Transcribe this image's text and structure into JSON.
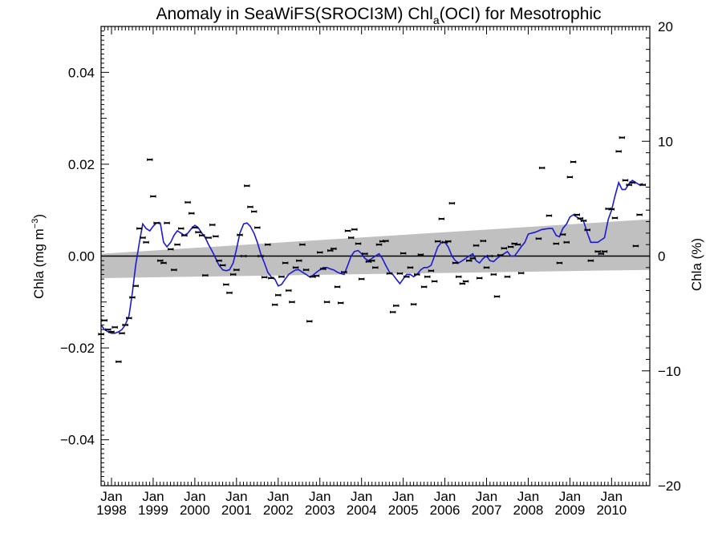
{
  "chart_data": {
    "type": "scatter",
    "title_main": "Anomaly in SeaWiFS(SROCI3M) Chl",
    "title_sub": "a",
    "title_tail": "(OCI) for Mesotrophic",
    "ylabel_left_main": "Chla (mg m",
    "ylabel_left_sup": "−3",
    "ylabel_left_close": ")",
    "ylabel_right": "Chla (%)",
    "x_range": [
      1997.75,
      2010.917
    ],
    "ylim_left": [
      -0.05,
      0.05
    ],
    "ylim_right": [
      -20,
      20
    ],
    "left_ticks": [
      {
        "value": -0.04,
        "label": "−0.04"
      },
      {
        "value": -0.02,
        "label": "−0.02"
      },
      {
        "value": 0.0,
        "label": "0.00"
      },
      {
        "value": 0.02,
        "label": "0.02"
      },
      {
        "value": 0.04,
        "label": "0.04"
      }
    ],
    "right_ticks": [
      {
        "value": -20,
        "label": "−20"
      },
      {
        "value": -10,
        "label": "−10"
      },
      {
        "value": 0,
        "label": "0"
      },
      {
        "value": 10,
        "label": "10"
      },
      {
        "value": 20,
        "label": "20"
      }
    ],
    "x_ticks": [
      {
        "value": 1998,
        "month": "Jan",
        "year": "1998"
      },
      {
        "value": 1999,
        "month": "Jan",
        "year": "1999"
      },
      {
        "value": 2000,
        "month": "Jan",
        "year": "2000"
      },
      {
        "value": 2001,
        "month": "Jan",
        "year": "2001"
      },
      {
        "value": 2002,
        "month": "Jan",
        "year": "2002"
      },
      {
        "value": 2003,
        "month": "Jan",
        "year": "2003"
      },
      {
        "value": 2004,
        "month": "Jan",
        "year": "2004"
      },
      {
        "value": 2005,
        "month": "Jan",
        "year": "2005"
      },
      {
        "value": 2006,
        "month": "Jan",
        "year": "2006"
      },
      {
        "value": 2007,
        "month": "Jan",
        "year": "2007"
      },
      {
        "value": 2008,
        "month": "Jan",
        "year": "2008"
      },
      {
        "value": 2009,
        "month": "Jan",
        "year": "2009"
      },
      {
        "value": 2010,
        "month": "Jan",
        "year": "2010"
      }
    ],
    "trend_band": {
      "x": [
        1997.75,
        2010.917
      ],
      "upper": [
        0.0005,
        0.008
      ],
      "lower": [
        -0.0048,
        -0.003
      ]
    },
    "points": [
      [
        1997.75,
        -0.017
      ],
      [
        1997.83,
        -0.014
      ],
      [
        1997.92,
        -0.016
      ],
      [
        1998.0,
        -0.0165
      ],
      [
        1998.08,
        -0.0155
      ],
      [
        1998.17,
        -0.023
      ],
      [
        1998.25,
        -0.0168
      ],
      [
        1998.33,
        -0.015
      ],
      [
        1998.42,
        -0.0135
      ],
      [
        1998.5,
        -0.009
      ],
      [
        1998.58,
        -0.0065
      ],
      [
        1998.67,
        0.006
      ],
      [
        1998.75,
        0.004
      ],
      [
        1998.83,
        0.003
      ],
      [
        1998.92,
        0.021
      ],
      [
        1999.0,
        0.013
      ],
      [
        1999.08,
        0.0072
      ],
      [
        1999.17,
        -0.001
      ],
      [
        1999.25,
        -0.0015
      ],
      [
        1999.33,
        0.0072
      ],
      [
        1999.42,
        0.0015
      ],
      [
        1999.5,
        -0.003
      ],
      [
        1999.58,
        0.0025
      ],
      [
        1999.67,
        0.006
      ],
      [
        1999.75,
        0.0045
      ],
      [
        1999.83,
        0.0117
      ],
      [
        1999.92,
        0.0093
      ],
      [
        2000.0,
        0.0062
      ],
      [
        2000.08,
        0.0052
      ],
      [
        2000.17,
        0.0045
      ],
      [
        2000.25,
        -0.0042
      ],
      [
        2000.33,
        0.004
      ],
      [
        2000.42,
        0.0068
      ],
      [
        2000.5,
        0.0043
      ],
      [
        2000.58,
        -0.001
      ],
      [
        2000.67,
        -0.002
      ],
      [
        2000.75,
        -0.0062
      ],
      [
        2000.83,
        -0.008
      ],
      [
        2000.92,
        -0.004
      ],
      [
        2001.0,
        -0.003
      ],
      [
        2001.08,
        0.0046
      ],
      [
        2001.17,
        0.0
      ],
      [
        2001.25,
        0.0153
      ],
      [
        2001.33,
        0.0107
      ],
      [
        2001.42,
        0.0097
      ],
      [
        2001.5,
        0.0062
      ],
      [
        2001.58,
        0.0
      ],
      [
        2001.67,
        -0.0046
      ],
      [
        2001.75,
        0.0025
      ],
      [
        2001.83,
        -0.0048
      ],
      [
        2001.92,
        -0.0106
      ],
      [
        2002.0,
        -0.0085
      ],
      [
        2002.08,
        -0.0045
      ],
      [
        2002.17,
        -0.0015
      ],
      [
        2002.25,
        -0.0075
      ],
      [
        2002.33,
        -0.01
      ],
      [
        2002.42,
        -0.0025
      ],
      [
        2002.5,
        -0.001
      ],
      [
        2002.58,
        0.0025
      ],
      [
        2002.67,
        -0.003
      ],
      [
        2002.75,
        -0.0142
      ],
      [
        2002.83,
        -0.0045
      ],
      [
        2002.92,
        -0.0043
      ],
      [
        2003.0,
        0.0008
      ],
      [
        2003.08,
        -0.0028
      ],
      [
        2003.17,
        -0.01
      ],
      [
        2003.25,
        0.0012
      ],
      [
        2003.33,
        0.0016
      ],
      [
        2003.42,
        -0.0067
      ],
      [
        2003.5,
        -0.0102
      ],
      [
        2003.58,
        -0.0035
      ],
      [
        2003.67,
        0.0055
      ],
      [
        2003.75,
        0.004
      ],
      [
        2003.83,
        0.0058
      ],
      [
        2003.92,
        0.0027
      ],
      [
        2004.0,
        -0.005
      ],
      [
        2004.08,
        0.0005
      ],
      [
        2004.17,
        -0.0012
      ],
      [
        2004.25,
        -0.001
      ],
      [
        2004.33,
        -0.0025
      ],
      [
        2004.42,
        0.0025
      ],
      [
        2004.5,
        0.0032
      ],
      [
        2004.58,
        0.0033
      ],
      [
        2004.67,
        -0.0038
      ],
      [
        2004.75,
        -0.0122
      ],
      [
        2004.83,
        -0.0108
      ],
      [
        2004.92,
        -0.0038
      ],
      [
        2005.0,
        0.0006
      ],
      [
        2005.08,
        -0.0045
      ],
      [
        2005.17,
        -0.0025
      ],
      [
        2005.25,
        -0.0105
      ],
      [
        2005.33,
        -0.004
      ],
      [
        2005.42,
        0.0003
      ],
      [
        2005.5,
        -0.0067
      ],
      [
        2005.58,
        -0.0045
      ],
      [
        2005.67,
        -0.0032
      ],
      [
        2005.75,
        -0.0055
      ],
      [
        2005.83,
        0.0032
      ],
      [
        2005.92,
        0.0081
      ],
      [
        2006.0,
        0.003
      ],
      [
        2006.08,
        0.0032
      ],
      [
        2006.17,
        0.0115
      ],
      [
        2006.25,
        -0.0015
      ],
      [
        2006.33,
        -0.0045
      ],
      [
        2006.42,
        -0.006
      ],
      [
        2006.5,
        -0.0055
      ],
      [
        2006.58,
        -0.001
      ],
      [
        2006.67,
        -0.0005
      ],
      [
        2006.75,
        0.0023
      ],
      [
        2006.83,
        -0.0048
      ],
      [
        2006.92,
        0.0033
      ],
      [
        2007.0,
        -0.0025
      ],
      [
        2007.08,
        0.0
      ],
      [
        2007.17,
        -0.004
      ],
      [
        2007.25,
        -0.0088
      ],
      [
        2007.33,
        0.0002
      ],
      [
        2007.42,
        0.0017
      ],
      [
        2007.5,
        -0.0045
      ],
      [
        2007.58,
        0.002
      ],
      [
        2007.67,
        0.0027
      ],
      [
        2007.75,
        0.0025
      ],
      [
        2007.83,
        -0.0037
      ],
      [
        2008.25,
        0.0038
      ],
      [
        2008.33,
        0.0192
      ],
      [
        2008.5,
        0.0088
      ],
      [
        2008.67,
        0.0027
      ],
      [
        2008.75,
        -0.0015
      ],
      [
        2008.83,
        0.0047
      ],
      [
        2008.92,
        0.003
      ],
      [
        2009.0,
        0.0172
      ],
      [
        2009.08,
        0.0205
      ],
      [
        2009.17,
        0.009
      ],
      [
        2009.25,
        0.0082
      ],
      [
        2009.33,
        0.0077
      ],
      [
        2009.42,
        0.0057
      ],
      [
        2009.5,
        -0.001
      ],
      [
        2009.67,
        0.001
      ],
      [
        2009.75,
        0.0005
      ],
      [
        2009.83,
        0.001
      ],
      [
        2009.92,
        0.0103
      ],
      [
        2010.0,
        0.0102
      ],
      [
        2010.08,
        0.0083
      ],
      [
        2010.17,
        0.0228
      ],
      [
        2010.25,
        0.0258
      ],
      [
        2010.33,
        0.0165
      ],
      [
        2010.42,
        0.0155
      ],
      [
        2010.5,
        0.016
      ],
      [
        2010.58,
        0.0022
      ],
      [
        2010.67,
        0.009
      ],
      [
        2010.75,
        0.0155
      ]
    ],
    "smooth": [
      [
        1997.75,
        -0.015
      ],
      [
        1997.83,
        -0.016
      ],
      [
        1997.92,
        -0.0165
      ],
      [
        1998.0,
        -0.0168
      ],
      [
        1998.08,
        -0.0168
      ],
      [
        1998.17,
        -0.0165
      ],
      [
        1998.25,
        -0.016
      ],
      [
        1998.33,
        -0.015
      ],
      [
        1998.42,
        -0.013
      ],
      [
        1998.5,
        -0.008
      ],
      [
        1998.58,
        -0.002
      ],
      [
        1998.67,
        0.003
      ],
      [
        1998.75,
        0.007
      ],
      [
        1998.83,
        0.006
      ],
      [
        1998.92,
        0.0055
      ],
      [
        1999.0,
        0.0065
      ],
      [
        1999.08,
        0.0072
      ],
      [
        1999.17,
        0.0072
      ],
      [
        1999.25,
        0.003
      ],
      [
        1999.33,
        0.002
      ],
      [
        1999.42,
        0.003
      ],
      [
        1999.5,
        0.0045
      ],
      [
        1999.58,
        0.0055
      ],
      [
        1999.67,
        0.005
      ],
      [
        1999.75,
        0.0045
      ],
      [
        1999.83,
        0.005
      ],
      [
        1999.92,
        0.006
      ],
      [
        2000.0,
        0.0067
      ],
      [
        2000.08,
        0.0062
      ],
      [
        2000.17,
        0.005
      ],
      [
        2000.25,
        0.004
      ],
      [
        2000.33,
        0.0025
      ],
      [
        2000.42,
        0.001
      ],
      [
        2000.5,
        -0.0005
      ],
      [
        2000.58,
        -0.002
      ],
      [
        2000.67,
        -0.003
      ],
      [
        2000.75,
        -0.0032
      ],
      [
        2000.83,
        -0.003
      ],
      [
        2000.92,
        -0.0015
      ],
      [
        2001.0,
        0.0015
      ],
      [
        2001.08,
        0.005
      ],
      [
        2001.17,
        0.007
      ],
      [
        2001.25,
        0.0072
      ],
      [
        2001.33,
        0.0065
      ],
      [
        2001.42,
        0.005
      ],
      [
        2001.5,
        0.003
      ],
      [
        2001.58,
        0.0005
      ],
      [
        2001.67,
        -0.0015
      ],
      [
        2001.75,
        -0.0035
      ],
      [
        2001.83,
        -0.0045
      ],
      [
        2001.92,
        -0.005
      ],
      [
        2002.0,
        -0.0065
      ],
      [
        2002.08,
        -0.0062
      ],
      [
        2002.17,
        -0.005
      ],
      [
        2002.25,
        -0.004
      ],
      [
        2002.33,
        -0.0035
      ],
      [
        2002.42,
        -0.003
      ],
      [
        2002.5,
        -0.003
      ],
      [
        2002.58,
        -0.0035
      ],
      [
        2002.67,
        -0.004
      ],
      [
        2002.75,
        -0.0045
      ],
      [
        2002.83,
        -0.0042
      ],
      [
        2002.92,
        -0.0035
      ],
      [
        2003.0,
        -0.003
      ],
      [
        2003.08,
        -0.0025
      ],
      [
        2003.17,
        -0.0025
      ],
      [
        2003.25,
        -0.0028
      ],
      [
        2003.33,
        -0.003
      ],
      [
        2003.42,
        -0.0035
      ],
      [
        2003.5,
        -0.0038
      ],
      [
        2003.58,
        -0.004
      ],
      [
        2003.67,
        -0.002
      ],
      [
        2003.75,
        0.0
      ],
      [
        2003.83,
        0.001
      ],
      [
        2003.92,
        0.0012
      ],
      [
        2004.0,
        0.0005
      ],
      [
        2004.08,
        -0.0005
      ],
      [
        2004.17,
        -0.001
      ],
      [
        2004.25,
        -0.0005
      ],
      [
        2004.33,
        0.0
      ],
      [
        2004.42,
        0.0005
      ],
      [
        2004.5,
        -0.0005
      ],
      [
        2004.58,
        -0.002
      ],
      [
        2004.67,
        -0.0035
      ],
      [
        2004.75,
        -0.004
      ],
      [
        2004.83,
        -0.005
      ],
      [
        2004.92,
        -0.006
      ],
      [
        2005.0,
        -0.005
      ],
      [
        2005.08,
        -0.004
      ],
      [
        2005.17,
        -0.004
      ],
      [
        2005.25,
        -0.0045
      ],
      [
        2005.33,
        -0.004
      ],
      [
        2005.42,
        -0.003
      ],
      [
        2005.5,
        -0.0025
      ],
      [
        2005.58,
        -0.0025
      ],
      [
        2005.67,
        -0.002
      ],
      [
        2005.75,
        0.0
      ],
      [
        2005.83,
        0.002
      ],
      [
        2005.92,
        0.003
      ],
      [
        2006.0,
        0.003
      ],
      [
        2006.08,
        0.002
      ],
      [
        2006.17,
        0.0
      ],
      [
        2006.25,
        -0.001
      ],
      [
        2006.33,
        -0.0015
      ],
      [
        2006.42,
        -0.001
      ],
      [
        2006.5,
        -0.0005
      ],
      [
        2006.58,
        0.0
      ],
      [
        2006.67,
        0.0005
      ],
      [
        2006.75,
        -0.001
      ],
      [
        2006.83,
        -0.0015
      ],
      [
        2006.92,
        -0.0005
      ],
      [
        2007.0,
        0.0
      ],
      [
        2007.08,
        -0.001
      ],
      [
        2007.17,
        -0.0012
      ],
      [
        2007.25,
        -0.0005
      ],
      [
        2007.33,
        0.0
      ],
      [
        2007.42,
        0.0005
      ],
      [
        2007.5,
        0.001
      ],
      [
        2007.58,
        0.0
      ],
      [
        2007.67,
        0.0
      ],
      [
        2007.75,
        0.001
      ],
      [
        2007.83,
        0.002
      ],
      [
        2007.92,
        0.003
      ],
      [
        2008.0,
        0.0048
      ],
      [
        2008.17,
        0.0052
      ],
      [
        2008.33,
        0.0058
      ],
      [
        2008.5,
        0.006
      ],
      [
        2008.58,
        0.006
      ],
      [
        2008.67,
        0.0045
      ],
      [
        2008.75,
        0.0042
      ],
      [
        2008.83,
        0.006
      ],
      [
        2008.92,
        0.007
      ],
      [
        2009.0,
        0.0085
      ],
      [
        2009.08,
        0.009
      ],
      [
        2009.17,
        0.0085
      ],
      [
        2009.25,
        0.008
      ],
      [
        2009.33,
        0.0075
      ],
      [
        2009.42,
        0.005
      ],
      [
        2009.5,
        0.003
      ],
      [
        2009.58,
        0.003
      ],
      [
        2009.67,
        0.003
      ],
      [
        2009.75,
        0.0035
      ],
      [
        2009.83,
        0.004
      ],
      [
        2009.92,
        0.008
      ],
      [
        2010.0,
        0.01
      ],
      [
        2010.08,
        0.013
      ],
      [
        2010.17,
        0.016
      ],
      [
        2010.25,
        0.0145
      ],
      [
        2010.33,
        0.0145
      ],
      [
        2010.42,
        0.0158
      ],
      [
        2010.5,
        0.0165
      ],
      [
        2010.58,
        0.016
      ],
      [
        2010.67,
        0.0155
      ],
      [
        2010.75,
        0.0158
      ]
    ],
    "colors": {
      "band": "#c0c0c0",
      "smooth": "#1a1ad6",
      "points": "#000000",
      "zero_line": "#000000"
    }
  }
}
